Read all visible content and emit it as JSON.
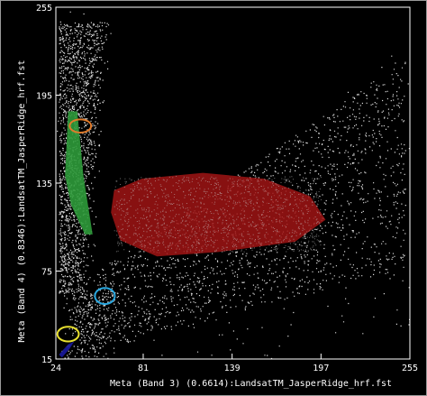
{
  "chart_data": {
    "type": "scatter",
    "title": "",
    "xlabel": "Meta (Band 3) (0.6614):LandsatTM_JasperRidge_hrf.fst",
    "ylabel": "Meta (Band 4) (0.8346):LandsatTM_JasperRidge_hrf.fst",
    "xlim": [
      24,
      255
    ],
    "ylim": [
      15,
      255
    ],
    "x_ticks": [
      "24",
      "81",
      "139",
      "197",
      "255"
    ],
    "y_ticks": [
      "15",
      "75",
      "135",
      "195",
      "255"
    ],
    "grid": false,
    "legend": "none",
    "colors": {
      "background": "#000000",
      "points": "#d8d8d8",
      "region_green": "#2e9a3a",
      "region_red": "#a01414",
      "region_blue": "#1a1aa0",
      "circle_orange": "#e07a2a",
      "circle_cyan": "#2aa8e0",
      "circle_yellow": "#e8e030"
    },
    "regions": [
      {
        "color": "green",
        "points": [
          [
            32,
            184
          ],
          [
            38,
            184
          ],
          [
            42,
            140
          ],
          [
            48,
            100
          ],
          [
            43,
            100
          ],
          [
            34,
            120
          ],
          [
            30,
            140
          ]
        ]
      },
      {
        "color": "red",
        "points": [
          [
            62,
            130
          ],
          [
            80,
            138
          ],
          [
            120,
            142
          ],
          [
            160,
            138
          ],
          [
            190,
            126
          ],
          [
            200,
            110
          ],
          [
            180,
            95
          ],
          [
            130,
            88
          ],
          [
            90,
            85
          ],
          [
            66,
            96
          ],
          [
            60,
            115
          ]
        ]
      },
      {
        "color": "blue",
        "points": [
          [
            26,
            18
          ],
          [
            32,
            25
          ],
          [
            36,
            27
          ],
          [
            33,
            22
          ],
          [
            28,
            16
          ]
        ]
      }
    ],
    "circles": [
      {
        "color": "orange",
        "x": 40,
        "y": 174,
        "rx": 7,
        "ry": 4.5
      },
      {
        "color": "cyan",
        "x": 56,
        "y": 58,
        "rx": 6.5,
        "ry": 5.5
      },
      {
        "color": "yellow",
        "x": 32,
        "y": 32,
        "rx": 7,
        "ry": 5
      }
    ]
  }
}
